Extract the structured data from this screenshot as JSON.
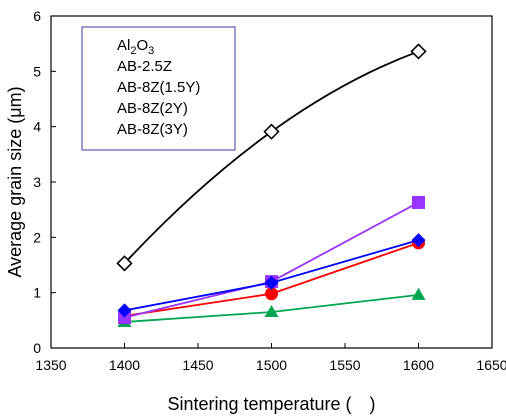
{
  "chart_data": {
    "type": "line",
    "xlabel": "Sintering temperature ( )",
    "ylabel": "Average grain size (μm)",
    "xlim": [
      1350,
      1650
    ],
    "ylim": [
      0,
      6
    ],
    "xticks": [
      1350,
      1400,
      1450,
      1500,
      1550,
      1600,
      1650
    ],
    "yticks": [
      0,
      1,
      2,
      3,
      4,
      5,
      6
    ],
    "grid": false,
    "legend_position": "top-left",
    "x": [
      1400,
      1500,
      1600
    ],
    "series": [
      {
        "name": "Al2O3",
        "label_main": "Al",
        "label_sub1": "2",
        "label_mid": "O",
        "label_sub2": "3",
        "values": [
          1.53,
          3.91,
          5.36
        ],
        "color": "#000000",
        "marker": "diamond-open"
      },
      {
        "name": "AB-2.5Z",
        "values": [
          0.47,
          0.65,
          0.96
        ],
        "color": "#00a651",
        "marker": "triangle"
      },
      {
        "name": "AB-8Z(1.5Y)",
        "values": [
          0.58,
          0.98,
          1.9
        ],
        "color": "#ff0000",
        "marker": "circle"
      },
      {
        "name": "AB-8Z(2Y)",
        "values": [
          0.55,
          1.2,
          2.63
        ],
        "color": "#9933ff",
        "marker": "square"
      },
      {
        "name": "AB-8Z(3Y)",
        "values": [
          0.68,
          1.18,
          1.95
        ],
        "color": "#0000ff",
        "marker": "diamond"
      }
    ]
  }
}
